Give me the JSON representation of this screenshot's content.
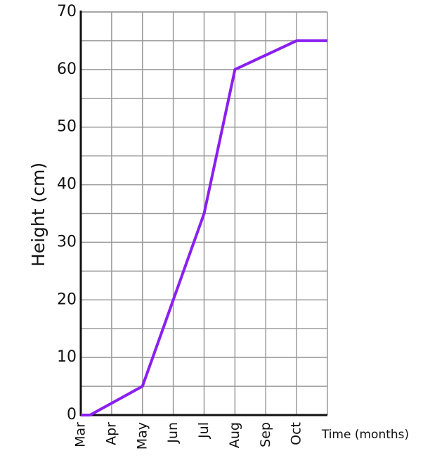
{
  "chart_data": {
    "type": "line",
    "ylabel": "Height (cm)",
    "xlabel": "Time (months)",
    "xlim": [
      0,
      8
    ],
    "ylim": [
      0,
      70
    ],
    "xticks": [
      {
        "value": 0,
        "label": "Mar"
      },
      {
        "value": 1,
        "label": "Apr"
      },
      {
        "value": 2,
        "label": "May"
      },
      {
        "value": 3,
        "label": "Jun"
      },
      {
        "value": 4,
        "label": "Jul"
      },
      {
        "value": 5,
        "label": "Aug"
      },
      {
        "value": 6,
        "label": "Sep"
      },
      {
        "value": 7,
        "label": "Oct"
      }
    ],
    "yticks": [
      0,
      10,
      20,
      30,
      40,
      50,
      60,
      70
    ],
    "yminorticks": [
      5,
      15,
      25,
      35,
      45,
      55,
      65
    ],
    "grid": true,
    "series": [
      {
        "color": "#8b1ff0",
        "x": [
          0,
          0.3,
          2,
          3,
          4,
          5,
          7,
          8
        ],
        "values": [
          0,
          0,
          5,
          20,
          35,
          60,
          65,
          65
        ]
      }
    ]
  }
}
